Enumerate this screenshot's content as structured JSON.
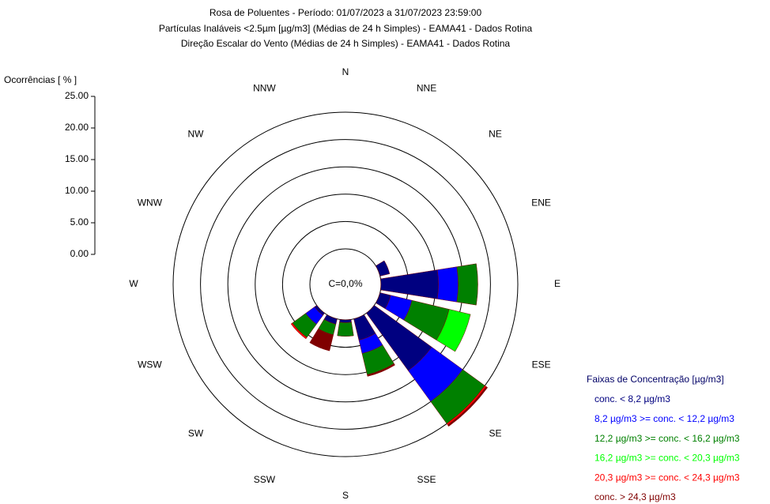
{
  "chart_data": {
    "type": "windrose",
    "title": "Rosa de Poluentes - Período: 01/07/2023 a 31/07/2023 23:59:00",
    "subtitle": [
      "Partículas Inaláveis <2.5µm [µg/m3] (Médias de 24 h Simples) - EAMA41 - Dados Rotina",
      "Direção Escalar do Vento (Médias de 24 h Simples) - EAMA41 - Dados Rotina"
    ],
    "y_label": "Ocorrências [ % ]",
    "calm_label": "C=0,0%",
    "legend_title": "Faixas de Concentração [µg/m3]",
    "directions": [
      "N",
      "NNE",
      "NE",
      "ENE",
      "E",
      "ESE",
      "SE",
      "SSE",
      "S",
      "SSW",
      "SW",
      "WSW",
      "W",
      "WNW",
      "NW",
      "NNW"
    ],
    "ylim": [
      0,
      25
    ],
    "yticks": [
      {
        "value": 0,
        "label": "0.00"
      },
      {
        "value": 5,
        "label": "5.00"
      },
      {
        "value": 10,
        "label": "10.00"
      },
      {
        "value": 15,
        "label": "15.00"
      },
      {
        "value": 20,
        "label": "20.00"
      },
      {
        "value": 25,
        "label": "25.00"
      }
    ],
    "series": [
      {
        "name": "conc. < 8,2 µg/m3",
        "color": "#000080",
        "values": [
          0,
          0,
          0,
          1.8,
          10.5,
          2,
          13,
          4,
          0.5,
          1,
          0.5,
          0,
          0,
          0,
          0,
          0
        ]
      },
      {
        "name": "8,2 µg/m3 >= conc. < 12,2 µg/m3",
        "color": "#0000ff",
        "values": [
          0,
          0,
          0,
          0,
          3.6,
          4,
          7,
          2.5,
          0,
          0,
          2,
          0,
          0,
          0,
          0,
          0
        ]
      },
      {
        "name": "12,2 µg/m3 >= conc. < 16,2 µg/m3",
        "color": "#008000",
        "values": [
          0,
          0,
          0,
          0,
          3.6,
          7,
          5,
          4,
          2.5,
          2,
          3,
          0,
          0,
          0,
          0,
          0
        ]
      },
      {
        "name": "16,2 µg/m3 >= conc. < 20,3 µg/m3",
        "color": "#00ff00",
        "values": [
          0,
          0,
          0,
          0,
          0,
          4,
          0,
          0,
          0,
          0,
          0,
          0,
          0,
          0,
          0,
          0
        ]
      },
      {
        "name": "20,3 µg/m3 >= conc. < 24,3 µg/m3",
        "color": "#ff0000",
        "values": [
          0,
          0,
          0,
          0,
          0,
          0,
          0.3,
          0,
          0,
          0,
          0.3,
          0,
          0,
          0,
          0,
          0
        ]
      },
      {
        "name": "conc. > 24,3 µg/m3",
        "color": "#800000",
        "values": [
          0,
          0,
          0,
          0,
          0,
          0,
          0.3,
          0.3,
          0,
          3,
          0,
          0,
          0,
          0,
          0,
          0
        ]
      }
    ]
  }
}
